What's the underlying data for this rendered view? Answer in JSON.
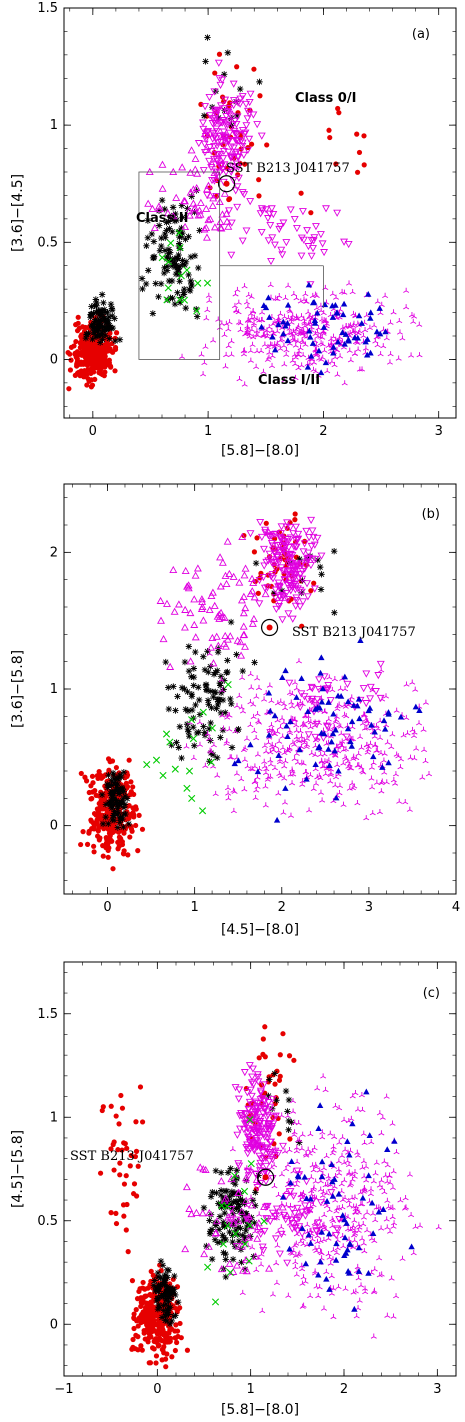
{
  "colors": {
    "class0I": "#e60000",
    "classII": "#000000",
    "classIII": "#e000e0",
    "transition": "#0000cc",
    "other": "#00cc00",
    "box": "#555555"
  },
  "chart_data": [
    {
      "type": "scatter",
      "panel": "(a)",
      "xlabel": "[5.8]−[8.0]",
      "ylabel": "[3.6]−[4.5]",
      "xlim": [
        -0.25,
        3.15
      ],
      "ylim": [
        -0.25,
        1.5
      ],
      "xticks": [
        0,
        1,
        2,
        3
      ],
      "yticks": [
        0,
        0.5,
        1,
        1.5
      ],
      "xtick_labels": [
        "0",
        "1",
        "2",
        "3"
      ],
      "ytick_labels": [
        "0",
        "0.5",
        "1",
        "1.5"
      ],
      "annotations": [
        "Class 0/I",
        "Class II",
        "Class I/II",
        "SST B213 J041757"
      ],
      "highlight": {
        "x": 1.16,
        "y": 0.75
      },
      "class_boxes": [
        {
          "name": "Class II",
          "x0": 0.4,
          "x1": 1.1,
          "y0": 0.0,
          "y1": 0.8
        },
        {
          "name": "Class I/II",
          "x0": 1.1,
          "x1": 2.0,
          "y0": 0.4,
          "y1": 0.4
        }
      ],
      "series": [
        {
          "marker": "filled-circle",
          "color": "class0I",
          "groups": [
            {
              "n": 320,
              "x": [
                -0.25,
                0.25
              ],
              "y": [
                -0.15,
                0.22
              ]
            },
            {
              "n": 40,
              "x": [
                0.8,
                1.6
              ],
              "y": [
                0.55,
                1.4
              ]
            },
            {
              "n": 12,
              "x": [
                1.6,
                2.8
              ],
              "y": [
                0.5,
                1.3
              ]
            }
          ]
        },
        {
          "marker": "asterisk",
          "color": "classII",
          "groups": [
            {
              "n": 90,
              "x": [
                -0.1,
                0.25
              ],
              "y": [
                0.0,
                0.3
              ]
            },
            {
              "n": 110,
              "x": [
                0.35,
                1.05
              ],
              "y": [
                0.1,
                0.8
              ]
            },
            {
              "n": 15,
              "x": [
                0.7,
                1.5
              ],
              "y": [
                0.8,
                1.45
              ]
            }
          ]
        },
        {
          "marker": "open-triangle-up",
          "color": "classIII",
          "groups": [
            {
              "n": 60,
              "x": [
                0.3,
                1.5
              ],
              "y": [
                0.4,
                1.0
              ]
            }
          ]
        },
        {
          "marker": "open-triangle-down",
          "color": "classIII",
          "groups": [
            {
              "n": 160,
              "x": [
                0.8,
                1.5
              ],
              "y": [
                0.6,
                1.3
              ]
            },
            {
              "n": 50,
              "x": [
                1.0,
                2.4
              ],
              "y": [
                0.3,
                0.8
              ]
            }
          ]
        },
        {
          "marker": "tri-star",
          "color": "classIII",
          "groups": [
            {
              "n": 380,
              "x": [
                0.6,
                3.1
              ],
              "y": [
                -0.15,
                0.38
              ]
            }
          ]
        },
        {
          "marker": "filled-triangle-up",
          "color": "transition",
          "groups": [
            {
              "n": 60,
              "x": [
                1.0,
                3.0
              ],
              "y": [
                -0.1,
                0.35
              ]
            }
          ]
        },
        {
          "marker": "cross",
          "color": "other",
          "groups": [
            {
              "n": 14,
              "x": [
                0.4,
                1.1
              ],
              "y": [
                -0.05,
                0.7
              ]
            }
          ]
        }
      ]
    },
    {
      "type": "scatter",
      "panel": "(b)",
      "xlabel": "[4.5]−[8.0]",
      "ylabel": "[3.6]−[5.8]",
      "xlim": [
        -0.5,
        4.0
      ],
      "ylim": [
        -0.5,
        2.5
      ],
      "xticks": [
        0,
        1,
        2,
        3,
        4
      ],
      "yticks": [
        0,
        1,
        2
      ],
      "xtick_labels": [
        "0",
        "1",
        "2",
        "3",
        "4"
      ],
      "ytick_labels": [
        "0",
        "1",
        "2"
      ],
      "annotations": [
        "SST B213 J041757"
      ],
      "highlight": {
        "x": 1.86,
        "y": 1.45
      },
      "series": [
        {
          "marker": "filled-circle",
          "color": "class0I",
          "groups": [
            {
              "n": 300,
              "x": [
                -0.35,
                0.45
              ],
              "y": [
                -0.35,
                0.6
              ]
            },
            {
              "n": 50,
              "x": [
                1.5,
                2.5
              ],
              "y": [
                1.3,
                2.5
              ]
            }
          ]
        },
        {
          "marker": "asterisk",
          "color": "classII",
          "groups": [
            {
              "n": 90,
              "x": [
                -0.1,
                0.3
              ],
              "y": [
                -0.1,
                0.5
              ]
            },
            {
              "n": 100,
              "x": [
                0.5,
                1.8
              ],
              "y": [
                0.3,
                1.6
              ]
            },
            {
              "n": 15,
              "x": [
                1.5,
                2.9
              ],
              "y": [
                1.5,
                2.3
              ]
            }
          ]
        },
        {
          "marker": "open-triangle-up",
          "color": "classIII",
          "groups": [
            {
              "n": 80,
              "x": [
                0.3,
                2.2
              ],
              "y": [
                1.0,
                2.3
              ]
            }
          ]
        },
        {
          "marker": "open-triangle-down",
          "color": "classIII",
          "groups": [
            {
              "n": 170,
              "x": [
                1.6,
                2.6
              ],
              "y": [
                1.4,
                2.4
              ]
            },
            {
              "n": 40,
              "x": [
                1.5,
                3.5
              ],
              "y": [
                0.5,
                1.4
              ]
            }
          ]
        },
        {
          "marker": "tri-star",
          "color": "classIII",
          "groups": [
            {
              "n": 420,
              "x": [
                0.7,
                4.0
              ],
              "y": [
                -0.1,
                1.3
              ]
            }
          ]
        },
        {
          "marker": "filled-triangle-up",
          "color": "transition",
          "groups": [
            {
              "n": 70,
              "x": [
                1.1,
                3.9
              ],
              "y": [
                -0.1,
                1.5
              ]
            }
          ]
        },
        {
          "marker": "cross",
          "color": "other",
          "groups": [
            {
              "n": 16,
              "x": [
                0.2,
                1.8
              ],
              "y": [
                -0.2,
                1.2
              ]
            }
          ]
        }
      ]
    },
    {
      "type": "scatter",
      "panel": "(c)",
      "xlabel": "[5.8]−[8.0]",
      "ylabel": "[4.5]−[5.8]",
      "xlim": [
        -1.0,
        3.2
      ],
      "ylim": [
        -0.25,
        1.75
      ],
      "xticks": [
        -1,
        0,
        1,
        2,
        3
      ],
      "yticks": [
        0,
        0.5,
        1,
        1.5
      ],
      "xtick_labels": [
        "−1",
        "0",
        "1",
        "2",
        "3"
      ],
      "ytick_labels": [
        "0",
        "0.5",
        "1",
        "1.5"
      ],
      "annotations": [
        "SST B213 J041757"
      ],
      "highlight": {
        "x": 1.16,
        "y": 0.71
      },
      "series": [
        {
          "marker": "filled-circle",
          "color": "class0I",
          "groups": [
            {
              "n": 320,
              "x": [
                -0.35,
                0.35
              ],
              "y": [
                -0.25,
                0.35
              ]
            },
            {
              "n": 40,
              "x": [
                -0.7,
                0.0
              ],
              "y": [
                0.2,
                1.3
              ]
            },
            {
              "n": 40,
              "x": [
                0.8,
                1.6
              ],
              "y": [
                0.55,
                1.6
              ]
            }
          ]
        },
        {
          "marker": "asterisk",
          "color": "classII",
          "groups": [
            {
              "n": 80,
              "x": [
                -0.1,
                0.25
              ],
              "y": [
                -0.05,
                0.35
              ]
            },
            {
              "n": 120,
              "x": [
                0.4,
                1.2
              ],
              "y": [
                0.2,
                0.85
              ]
            },
            {
              "n": 12,
              "x": [
                0.9,
                1.8
              ],
              "y": [
                0.85,
                1.3
              ]
            }
          ]
        },
        {
          "marker": "open-triangle-up",
          "color": "classIII",
          "groups": [
            {
              "n": 50,
              "x": [
                0.1,
                1.5
              ],
              "y": [
                0.1,
                0.9
              ]
            }
          ]
        },
        {
          "marker": "open-triangle-down",
          "color": "classIII",
          "groups": [
            {
              "n": 170,
              "x": [
                0.8,
                1.4
              ],
              "y": [
                0.6,
                1.3
              ]
            },
            {
              "n": 60,
              "x": [
                0.5,
                2.2
              ],
              "y": [
                0.2,
                0.8
              ]
            }
          ]
        },
        {
          "marker": "tri-star",
          "color": "classIII",
          "groups": [
            {
              "n": 420,
              "x": [
                0.6,
                3.1
              ],
              "y": [
                -0.15,
                1.3
              ]
            }
          ]
        },
        {
          "marker": "filled-triangle-up",
          "color": "transition",
          "groups": [
            {
              "n": 60,
              "x": [
                1.0,
                3.0
              ],
              "y": [
                -0.1,
                1.2
              ]
            }
          ]
        },
        {
          "marker": "cross",
          "color": "other",
          "groups": [
            {
              "n": 16,
              "x": [
                0.3,
                1.4
              ],
              "y": [
                -0.25,
                1.2
              ]
            }
          ]
        }
      ]
    }
  ]
}
